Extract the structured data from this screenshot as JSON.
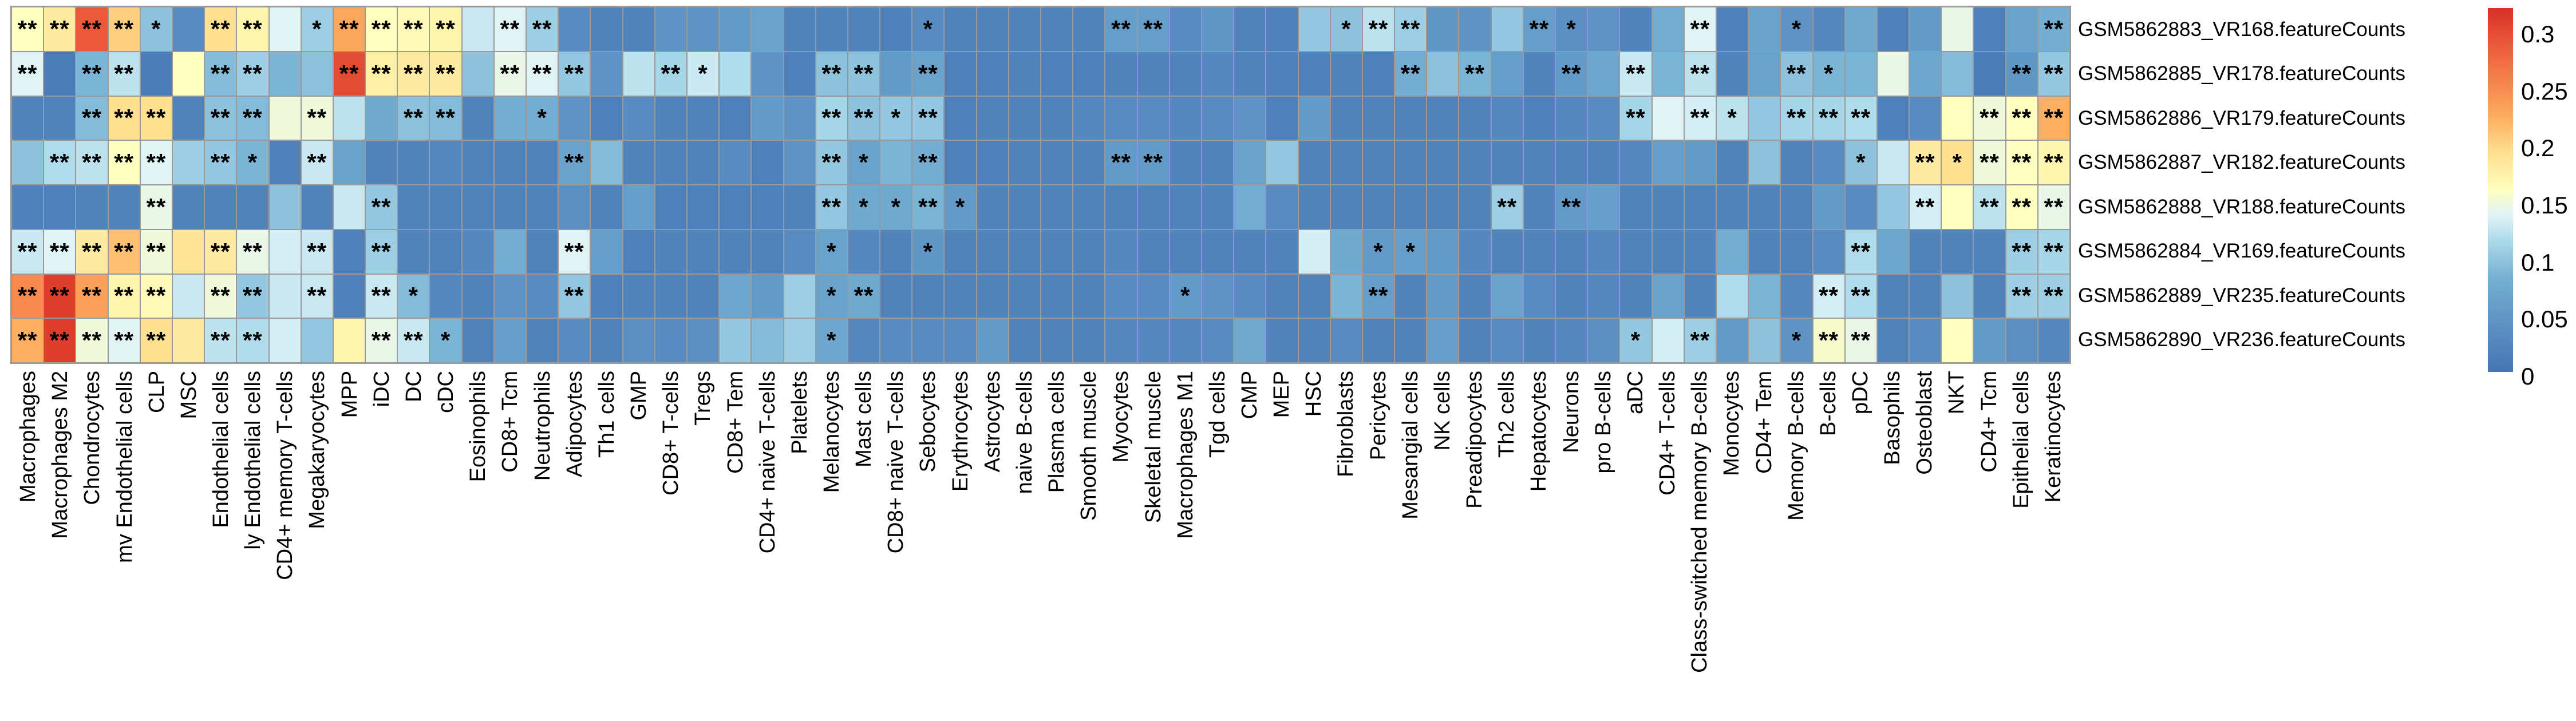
{
  "chart_data": {
    "type": "heatmap",
    "title": "",
    "rows": [
      "GSM5862883_VR168.featureCounts",
      "GSM5862885_VR178.featureCounts",
      "GSM5862886_VR179.featureCounts",
      "GSM5862887_VR182.featureCounts",
      "GSM5862888_VR188.featureCounts",
      "GSM5862884_VR169.featureCounts",
      "GSM5862889_VR235.featureCounts",
      "GSM5862890_VR236.featureCounts"
    ],
    "columns": [
      "Macrophages",
      "Macrophages M2",
      "Chondrocytes",
      "mv Endothelial cells",
      "CLP",
      "MSC",
      "Endothelial cells",
      "ly Endothelial cells",
      "CD4+ memory T-cells",
      "Megakaryocytes",
      "MPP",
      "iDC",
      "DC",
      "cDC",
      "Eosinophils",
      "CD8+ Tcm",
      "Neutrophils",
      "Adipocytes",
      "Th1 cells",
      "GMP",
      "CD8+ T-cells",
      "Tregs",
      "CD8+ Tem",
      "CD4+ naive T-cells",
      "Platelets",
      "Melanocytes",
      "Mast cells",
      "CD8+ naive T-cells",
      "Sebocytes",
      "Erythrocytes",
      "Astrocytes",
      "naive B-cells",
      "Plasma cells",
      "Smooth muscle",
      "Myocytes",
      "Skeletal muscle",
      "Macrophages M1",
      "Tgd cells",
      "CMP",
      "MEP",
      "HSC",
      "Fibroblasts",
      "Pericytes",
      "Mesangial cells",
      "NK cells",
      "Preadipocytes",
      "Th2 cells",
      "Hepatocytes",
      "Neurons",
      "pro B-cells",
      "aDC",
      "CD4+ T-cells",
      "Class-switched memory B-cells",
      "Monocytes",
      "CD4+ Tem",
      "Memory B-cells",
      "B-cells",
      "pDC",
      "Basophils",
      "Osteoblast",
      "NKT",
      "CD4+ Tcm",
      "Epithelial cells",
      "Keratinocytes"
    ],
    "values": [
      [
        0.15,
        0.17,
        0.27,
        0.19,
        0.09,
        0.03,
        0.18,
        0.16,
        0.13,
        0.1,
        0.215,
        0.15,
        0.155,
        0.16,
        0.12,
        0.13,
        0.1,
        0.03,
        0.02,
        0.02,
        0.04,
        0.04,
        0.05,
        0.06,
        0.02,
        0.02,
        0.02,
        0.015,
        0.03,
        0.02,
        0.02,
        0.02,
        0.02,
        0.02,
        0.055,
        0.055,
        0.03,
        0.045,
        0.02,
        0.015,
        0.095,
        0.09,
        0.115,
        0.1,
        0.045,
        0.04,
        0.095,
        0.055,
        0.035,
        0.04,
        0.02,
        0.075,
        0.13,
        0.015,
        0.06,
        0.04,
        0.025,
        0.07,
        0.015,
        0.05,
        0.135,
        0.015,
        0.06,
        0.075
      ],
      [
        0.13,
        0.01,
        0.08,
        0.115,
        0.01,
        0.15,
        0.085,
        0.1,
        0.08,
        0.09,
        0.28,
        0.165,
        0.17,
        0.17,
        0.09,
        0.135,
        0.13,
        0.095,
        0.04,
        0.115,
        0.105,
        0.12,
        0.11,
        0.04,
        0.015,
        0.09,
        0.09,
        0.05,
        0.06,
        0.015,
        0.015,
        0.02,
        0.015,
        0.015,
        0.02,
        0.02,
        0.02,
        0.025,
        0.02,
        0.015,
        0.015,
        0.02,
        0.015,
        0.075,
        0.09,
        0.08,
        0.055,
        0.02,
        0.05,
        0.065,
        0.12,
        0.08,
        0.115,
        0.02,
        0.06,
        0.09,
        0.08,
        0.08,
        0.135,
        0.065,
        0.085,
        0.01,
        0.045,
        0.095
      ],
      [
        0.02,
        0.02,
        0.085,
        0.18,
        0.18,
        0.02,
        0.09,
        0.085,
        0.14,
        0.14,
        0.115,
        0.07,
        0.09,
        0.085,
        0.02,
        0.075,
        0.075,
        0.04,
        0.015,
        0.03,
        0.02,
        0.02,
        0.015,
        0.05,
        0.04,
        0.105,
        0.09,
        0.095,
        0.095,
        0.015,
        0.02,
        0.02,
        0.02,
        0.025,
        0.03,
        0.03,
        0.025,
        0.03,
        0.04,
        0.015,
        0.05,
        0.02,
        0.02,
        0.02,
        0.02,
        0.02,
        0.025,
        0.015,
        0.025,
        0.03,
        0.105,
        0.13,
        0.125,
        0.115,
        0.095,
        0.105,
        0.105,
        0.11,
        0.015,
        0.03,
        0.15,
        0.14,
        0.15,
        0.21
      ],
      [
        0.09,
        0.11,
        0.115,
        0.15,
        0.13,
        0.1,
        0.095,
        0.08,
        0.015,
        0.12,
        0.06,
        0.02,
        0.02,
        0.025,
        0.02,
        0.02,
        0.02,
        0.06,
        0.085,
        0.02,
        0.02,
        0.02,
        0.03,
        0.015,
        0.04,
        0.095,
        0.06,
        0.08,
        0.075,
        0.015,
        0.015,
        0.02,
        0.02,
        0.02,
        0.05,
        0.05,
        0.02,
        0.02,
        0.06,
        0.095,
        0.02,
        0.02,
        0.02,
        0.02,
        0.02,
        0.02,
        0.02,
        0.02,
        0.02,
        0.02,
        0.025,
        0.055,
        0.05,
        0.02,
        0.09,
        0.02,
        0.03,
        0.09,
        0.12,
        0.17,
        0.18,
        0.14,
        0.15,
        0.16
      ],
      [
        0.015,
        0.015,
        0.02,
        0.02,
        0.135,
        0.02,
        0.02,
        0.02,
        0.09,
        0.02,
        0.12,
        0.095,
        0.02,
        0.02,
        0.02,
        0.02,
        0.02,
        0.035,
        0.02,
        0.055,
        0.015,
        0.015,
        0.015,
        0.015,
        0.02,
        0.095,
        0.07,
        0.07,
        0.08,
        0.05,
        0.02,
        0.02,
        0.02,
        0.02,
        0.02,
        0.02,
        0.02,
        0.02,
        0.075,
        0.03,
        0.02,
        0.02,
        0.02,
        0.02,
        0.02,
        0.02,
        0.1,
        0.02,
        0.05,
        0.055,
        0.02,
        0.02,
        0.02,
        0.02,
        0.02,
        0.02,
        0.05,
        0.03,
        0.095,
        0.125,
        0.15,
        0.115,
        0.15,
        0.135
      ],
      [
        0.12,
        0.13,
        0.17,
        0.2,
        0.14,
        0.175,
        0.17,
        0.135,
        0.125,
        0.12,
        0.015,
        0.1,
        0.02,
        0.02,
        0.025,
        0.075,
        0.02,
        0.13,
        0.055,
        0.015,
        0.02,
        0.02,
        0.02,
        0.02,
        0.03,
        0.06,
        0.025,
        0.02,
        0.045,
        0.02,
        0.02,
        0.02,
        0.02,
        0.02,
        0.025,
        0.02,
        0.02,
        0.02,
        0.02,
        0.02,
        0.125,
        0.07,
        0.05,
        0.055,
        0.05,
        0.025,
        0.02,
        0.02,
        0.02,
        0.025,
        0.02,
        0.02,
        0.02,
        0.075,
        0.02,
        0.02,
        0.03,
        0.11,
        0.065,
        0.02,
        0.02,
        0.02,
        0.1,
        0.105
      ],
      [
        0.235,
        0.29,
        0.22,
        0.16,
        0.155,
        0.12,
        0.14,
        0.095,
        0.12,
        0.12,
        0.015,
        0.12,
        0.085,
        0.025,
        0.02,
        0.04,
        0.03,
        0.095,
        0.015,
        0.02,
        0.02,
        0.02,
        0.065,
        0.05,
        0.1,
        0.06,
        0.07,
        0.02,
        0.02,
        0.02,
        0.02,
        0.02,
        0.02,
        0.02,
        0.03,
        0.03,
        0.05,
        0.04,
        0.03,
        0.02,
        0.02,
        0.08,
        0.055,
        0.02,
        0.05,
        0.02,
        0.06,
        0.03,
        0.02,
        0.025,
        0.02,
        0.06,
        0.02,
        0.11,
        0.08,
        0.025,
        0.125,
        0.11,
        0.02,
        0.02,
        0.09,
        0.02,
        0.1,
        0.1
      ],
      [
        0.21,
        0.29,
        0.14,
        0.13,
        0.18,
        0.17,
        0.115,
        0.11,
        0.125,
        0.095,
        0.16,
        0.135,
        0.12,
        0.08,
        0.02,
        0.055,
        0.02,
        0.03,
        0.02,
        0.035,
        0.03,
        0.035,
        0.095,
        0.085,
        0.1,
        0.065,
        0.025,
        0.03,
        0.03,
        0.03,
        0.05,
        0.02,
        0.02,
        0.02,
        0.025,
        0.025,
        0.025,
        0.03,
        0.07,
        0.02,
        0.02,
        0.03,
        0.02,
        0.02,
        0.055,
        0.02,
        0.03,
        0.02,
        0.025,
        0.035,
        0.095,
        0.125,
        0.1,
        0.05,
        0.09,
        0.04,
        0.145,
        0.135,
        0.02,
        0.03,
        0.15,
        0.05,
        0.035,
        0.025
      ]
    ],
    "significance": [
      [
        "**",
        "**",
        "**",
        "**",
        "*",
        "",
        "**",
        "**",
        "",
        "*",
        "**",
        "**",
        "**",
        "**",
        "",
        "**",
        "**",
        "",
        "",
        "",
        "",
        "",
        "",
        "",
        "",
        "",
        "",
        "",
        "*",
        "",
        "",
        "",
        "",
        "",
        "**",
        "**",
        "",
        "",
        "",
        "",
        "",
        "*",
        "**",
        "**",
        "",
        "",
        "",
        "**",
        "*",
        "",
        "",
        "",
        "**",
        "",
        "",
        "*",
        "",
        "",
        "",
        "",
        "",
        "",
        "",
        "**"
      ],
      [
        "**",
        "",
        "**",
        "**",
        "",
        "",
        "**",
        "**",
        "",
        "",
        "**",
        "**",
        "**",
        "**",
        "",
        "**",
        "**",
        "**",
        "",
        "",
        "**",
        "*",
        "",
        "",
        "",
        "**",
        "**",
        "",
        "**",
        "",
        "",
        "",
        "",
        "",
        "",
        "",
        "",
        "",
        "",
        "",
        "",
        "",
        "",
        "**",
        "",
        "**",
        "",
        "",
        "**",
        "",
        "**",
        "",
        "**",
        "",
        "",
        "**",
        "*",
        "",
        "",
        "",
        "",
        "",
        "**",
        "**"
      ],
      [
        "",
        "",
        "**",
        "**",
        "**",
        "",
        "**",
        "**",
        "",
        "**",
        "",
        "",
        "**",
        "**",
        "",
        "",
        "*",
        "",
        "",
        "",
        "",
        "",
        "",
        "",
        "",
        "**",
        "**",
        "*",
        "**",
        "",
        "",
        "",
        "",
        "",
        "",
        "",
        "",
        "",
        "",
        "",
        "",
        "",
        "",
        "",
        "",
        "",
        "",
        "",
        "",
        "",
        "**",
        "",
        "**",
        "*",
        "",
        "**",
        "**",
        "**",
        "",
        "",
        "",
        "**",
        "**",
        "**"
      ],
      [
        "",
        "**",
        "**",
        "**",
        "**",
        "",
        "**",
        "*",
        "",
        "**",
        "",
        "",
        "",
        "",
        "",
        "",
        "",
        "**",
        "",
        "",
        "",
        "",
        "",
        "",
        "",
        "**",
        "*",
        "",
        "**",
        "",
        "",
        "",
        "",
        "",
        "**",
        "**",
        "",
        "",
        "",
        "",
        "",
        "",
        "",
        "",
        "",
        "",
        "",
        "",
        "",
        "",
        "",
        "",
        "",
        "",
        "",
        "",
        "",
        "*",
        "",
        "**",
        "*",
        "**",
        "**",
        "**"
      ],
      [
        "",
        "",
        "",
        "",
        "**",
        "",
        "",
        "",
        "",
        "",
        "",
        "**",
        "",
        "",
        "",
        "",
        "",
        "",
        "",
        "",
        "",
        "",
        "",
        "",
        "",
        "**",
        "*",
        "*",
        "**",
        "*",
        "",
        "",
        "",
        "",
        "",
        "",
        "",
        "",
        "",
        "",
        "",
        "",
        "",
        "",
        "",
        "",
        "**",
        "",
        "**",
        "",
        "",
        "",
        "",
        "",
        "",
        "",
        "",
        "",
        "",
        "**",
        "",
        "**",
        "**",
        "**"
      ],
      [
        "**",
        "**",
        "**",
        "**",
        "**",
        "",
        "**",
        "**",
        "",
        "**",
        "",
        "**",
        "",
        "",
        "",
        "",
        "",
        "**",
        "",
        "",
        "",
        "",
        "",
        "",
        "",
        "*",
        "",
        "",
        "*",
        "",
        "",
        "",
        "",
        "",
        "",
        "",
        "",
        "",
        "",
        "",
        "",
        "",
        "*",
        "*",
        "",
        "",
        "",
        "",
        "",
        "",
        "",
        "",
        "",
        "",
        "",
        "",
        "",
        "**",
        "",
        "",
        "",
        "",
        "**",
        "**"
      ],
      [
        "**",
        "**",
        "**",
        "**",
        "**",
        "",
        "**",
        "**",
        "",
        "**",
        "",
        "**",
        "*",
        "",
        "",
        "",
        "",
        "**",
        "",
        "",
        "",
        "",
        "",
        "",
        "",
        "*",
        "**",
        "",
        "",
        "",
        "",
        "",
        "",
        "",
        "",
        "",
        "*",
        "",
        "",
        "",
        "",
        "",
        "**",
        "",
        "",
        "",
        "",
        "",
        "",
        "",
        "",
        "",
        "",
        "",
        "",
        "",
        "**",
        "**",
        "",
        "",
        "",
        "",
        "**",
        "**"
      ],
      [
        "**",
        "**",
        "**",
        "**",
        "**",
        "",
        "**",
        "**",
        "",
        "",
        "",
        "**",
        "**",
        "*",
        "",
        "",
        "",
        "",
        "",
        "",
        "",
        "",
        "",
        "",
        "",
        "*",
        "",
        "",
        "",
        "",
        "",
        "",
        "",
        "",
        "",
        "",
        "",
        "",
        "",
        "",
        "",
        "",
        "",
        "",
        "",
        "",
        "",
        "",
        "",
        "",
        "*",
        "",
        "**",
        "",
        "",
        "*",
        "**",
        "**",
        "",
        "",
        "",
        "",
        "",
        ""
      ]
    ],
    "value_range": [
      0,
      0.3
    ],
    "colormap": {
      "name": "RdYlBu reversed",
      "stops": [
        "#4575b4",
        "#74add1",
        "#abd9e9",
        "#e0f3f8",
        "#ffffbf",
        "#fee090",
        "#fdae61",
        "#f46d43",
        "#d73027"
      ],
      "positions": [
        0,
        0.25,
        0.36,
        0.43,
        0.5,
        0.6,
        0.7,
        0.85,
        1
      ]
    },
    "grid_line_color": "#9a9a9a",
    "legend_position": "right",
    "legend_ticks": [
      "0.3",
      "0.25",
      "0.2",
      "0.15",
      "0.1",
      "0.05",
      "0"
    ]
  }
}
